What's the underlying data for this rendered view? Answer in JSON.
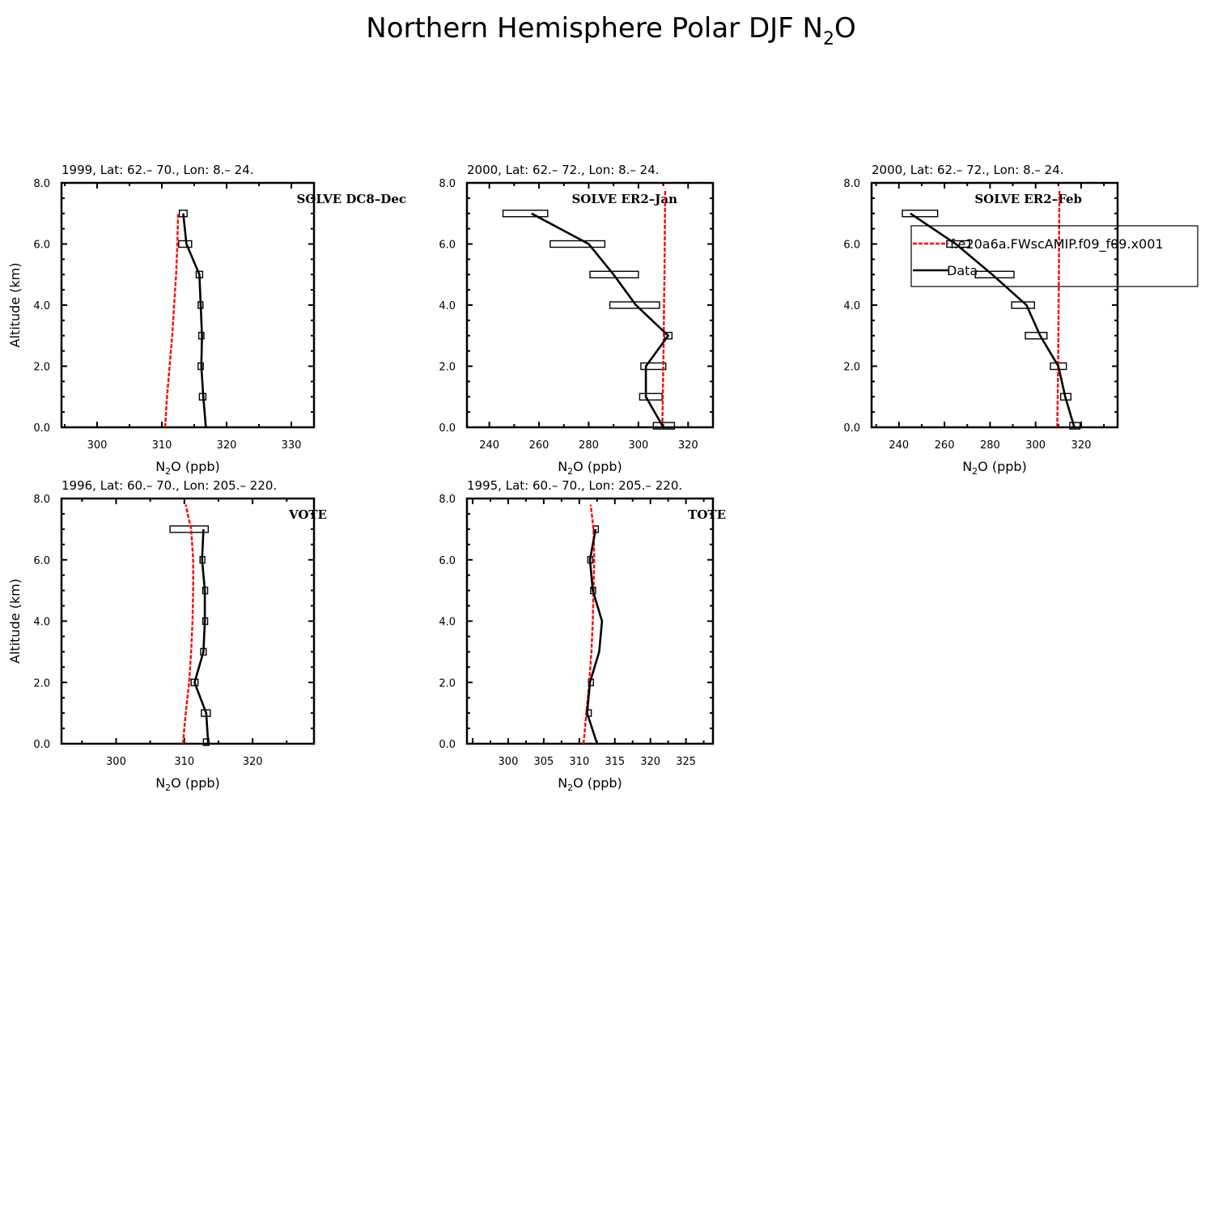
{
  "figure": {
    "title_main": "Northern Hemisphere Polar DJF N",
    "title_sub": "2",
    "title_tail": "O"
  },
  "colors": {
    "model": "#ff0000",
    "data": "#000000",
    "axes": "#000000"
  },
  "legend": {
    "model_label": "f.e20a6a.FWscAMIP.f09_f09.x001",
    "data_label": "Data"
  },
  "chart_data": [
    {
      "type": "line",
      "title": "1999, Lat: 62.– 70., Lon: 8.– 24.",
      "campaign": "SOLVE DC8–Dec",
      "xlabel_main": "N",
      "xlabel_sub": "2",
      "xlabel_tail": "O (ppb)",
      "ylabel": "Altitude (km)",
      "xlim": [
        294.5,
        333.5
      ],
      "ylim": [
        0,
        8
      ],
      "xticks": [
        300,
        310,
        320,
        330
      ],
      "xticklabels": [
        "300",
        "310",
        "320",
        "330"
      ],
      "yticks": [
        0,
        2,
        4,
        6,
        8
      ],
      "yticklabels": [
        "0.0",
        "2.0",
        "4.0",
        "6.0",
        "8.0"
      ],
      "show_legend": false,
      "series": [
        {
          "kind": "model",
          "x": [
            310.5,
            310.8,
            311.2,
            311.6,
            311.9,
            312.2,
            312.4,
            312.5
          ],
          "y": [
            0,
            1,
            2,
            3,
            4,
            5,
            6,
            7
          ]
        },
        {
          "kind": "data",
          "x": [
            316.8,
            316.4,
            316.1,
            316.2,
            316.0,
            315.8,
            313.8,
            313.3
          ],
          "y": [
            0,
            1,
            2,
            3,
            4,
            5,
            6,
            7
          ]
        }
      ],
      "boxes": [
        {
          "x0": 315.8,
          "x1": 316.8,
          "y": 1
        },
        {
          "x0": 315.6,
          "x1": 316.4,
          "y": 2
        },
        {
          "x0": 315.7,
          "x1": 316.5,
          "y": 3
        },
        {
          "x0": 315.6,
          "x1": 316.3,
          "y": 4
        },
        {
          "x0": 315.3,
          "x1": 316.3,
          "y": 5
        },
        {
          "x0": 312.6,
          "x1": 314.6,
          "y": 6
        },
        {
          "x0": 312.7,
          "x1": 313.9,
          "y": 7
        }
      ]
    },
    {
      "type": "line",
      "title": "2000, Lat: 62.– 72., Lon: 8.– 24.",
      "campaign": "SOLVE ER2–Jan",
      "xlabel_main": "N",
      "xlabel_sub": "2",
      "xlabel_tail": "O (ppb)",
      "ylabel": "",
      "xlim": [
        231,
        330
      ],
      "ylim": [
        0,
        8
      ],
      "xticks": [
        240,
        260,
        280,
        300,
        320
      ],
      "xticklabels": [
        "240",
        "260",
        "280",
        "300",
        "320"
      ],
      "yticks": [
        0,
        2,
        4,
        6,
        8
      ],
      "yticklabels": [
        "0.0",
        "2.0",
        "4.0",
        "6.0",
        "8.0"
      ],
      "show_legend": false,
      "series": [
        {
          "kind": "model",
          "x": [
            309.6,
            309.8,
            310.0,
            310.2,
            310.3,
            310.5,
            310.6,
            310.7,
            310.8
          ],
          "y": [
            0,
            1,
            2,
            3,
            4,
            5,
            6,
            7,
            7.8
          ]
        },
        {
          "kind": "data",
          "x": [
            310.0,
            303.0,
            303.0,
            312.0,
            299.0,
            290.0,
            280.0,
            257.0
          ],
          "y": [
            0,
            1,
            2,
            3,
            4,
            5,
            6,
            7
          ]
        }
      ],
      "boxes": [
        {
          "x0": 306.0,
          "x1": 314.5,
          "y": 0.05
        },
        {
          "x0": 300.5,
          "x1": 309.5,
          "y": 1
        },
        {
          "x0": 301.0,
          "x1": 311.0,
          "y": 2
        },
        {
          "x0": 310.5,
          "x1": 313.5,
          "y": 3
        },
        {
          "x0": 288.5,
          "x1": 308.5,
          "y": 4
        },
        {
          "x0": 280.5,
          "x1": 300.0,
          "y": 5
        },
        {
          "x0": 264.5,
          "x1": 286.5,
          "y": 6
        },
        {
          "x0": 245.5,
          "x1": 263.5,
          "y": 7
        }
      ]
    },
    {
      "type": "line",
      "title": "2000, Lat: 62.– 72., Lon: 8.– 24.",
      "campaign": "SOLVE ER2–Feb",
      "xlabel_main": "N",
      "xlabel_sub": "2",
      "xlabel_tail": "O (ppb)",
      "ylabel": "",
      "xlim": [
        228,
        336
      ],
      "ylim": [
        0,
        8
      ],
      "xticks": [
        240,
        260,
        280,
        300,
        320
      ],
      "xticklabels": [
        "240",
        "260",
        "280",
        "300",
        "320"
      ],
      "yticks": [
        0,
        2,
        4,
        6,
        8
      ],
      "yticklabels": [
        "0.0",
        "2.0",
        "4.0",
        "6.0",
        "8.0"
      ],
      "show_legend": true,
      "series": [
        {
          "kind": "model",
          "x": [
            309.5,
            309.7,
            309.9,
            310.0,
            310.1,
            310.2,
            310.3,
            310.4,
            310.5
          ],
          "y": [
            0,
            1,
            2,
            3,
            4,
            5,
            6,
            7,
            7.8
          ]
        },
        {
          "kind": "data",
          "x": [
            317.0,
            313.0,
            310.0,
            302.0,
            296.0,
            281.0,
            265.0,
            245.0
          ],
          "y": [
            0,
            1,
            2,
            3,
            4,
            5,
            6,
            7
          ]
        }
      ],
      "boxes": [
        {
          "x0": 315.0,
          "x1": 319.5,
          "y": 0.05
        },
        {
          "x0": 311.0,
          "x1": 315.5,
          "y": 1
        },
        {
          "x0": 306.5,
          "x1": 313.5,
          "y": 2
        },
        {
          "x0": 295.5,
          "x1": 305.0,
          "y": 3
        },
        {
          "x0": 289.5,
          "x1": 299.5,
          "y": 4
        },
        {
          "x0": 273.5,
          "x1": 290.5,
          "y": 5
        },
        {
          "x0": 261.0,
          "x1": 271.0,
          "y": 6
        },
        {
          "x0": 241.5,
          "x1": 257.0,
          "y": 7
        }
      ]
    },
    {
      "type": "line",
      "title": "1996, Lat: 60.– 70., Lon: 205.– 220.",
      "campaign": "VOTE",
      "xlabel_main": "N",
      "xlabel_sub": "2",
      "xlabel_tail": "O (ppb)",
      "ylabel": "Altitude (km)",
      "xlim": [
        292,
        329
      ],
      "ylim": [
        0,
        8
      ],
      "xticks": [
        300,
        310,
        320
      ],
      "xticklabels": [
        "300",
        "310",
        "320"
      ],
      "yticks": [
        0,
        2,
        4,
        6,
        8
      ],
      "yticklabels": [
        "0.0",
        "2.0",
        "4.0",
        "6.0",
        "8.0"
      ],
      "show_legend": false,
      "series": [
        {
          "kind": "model",
          "x": [
            309.8,
            310.2,
            310.7,
            311.0,
            311.2,
            311.3,
            311.3,
            311.0,
            310.2
          ],
          "y": [
            0,
            1,
            2,
            3,
            4,
            5,
            6,
            7,
            7.8
          ]
        },
        {
          "kind": "data",
          "x": [
            313.5,
            313.2,
            311.5,
            312.8,
            313.0,
            313.0,
            312.6,
            312.8
          ],
          "y": [
            0,
            1,
            2,
            3,
            4,
            5,
            6,
            7
          ]
        }
      ],
      "boxes": [
        {
          "x0": 312.8,
          "x1": 313.6,
          "y": 0.05
        },
        {
          "x0": 312.5,
          "x1": 313.8,
          "y": 1
        },
        {
          "x0": 311.0,
          "x1": 312.0,
          "y": 2
        },
        {
          "x0": 312.4,
          "x1": 313.2,
          "y": 3
        },
        {
          "x0": 312.7,
          "x1": 313.3,
          "y": 4
        },
        {
          "x0": 312.7,
          "x1": 313.3,
          "y": 5
        },
        {
          "x0": 312.3,
          "x1": 312.9,
          "y": 6
        },
        {
          "x0": 307.9,
          "x1": 313.5,
          "y": 7
        }
      ]
    },
    {
      "type": "line",
      "title": "1995, Lat: 60.– 70., Lon: 205.– 220.",
      "campaign": "TOTE",
      "xlabel_main": "N",
      "xlabel_sub": "2",
      "xlabel_tail": "O (ppb)",
      "ylabel": "",
      "xlim": [
        294.2,
        328.8
      ],
      "ylim": [
        0,
        8
      ],
      "xticks": [
        300,
        305,
        310,
        315,
        320,
        325
      ],
      "xticklabels": [
        "300",
        "305",
        "310",
        "315",
        "320",
        "325"
      ],
      "yticks": [
        0,
        2,
        4,
        6,
        8
      ],
      "yticklabels": [
        "0.0",
        "2.0",
        "4.0",
        "6.0",
        "8.0"
      ],
      "show_legend": false,
      "series": [
        {
          "kind": "model",
          "x": [
            310.6,
            311.0,
            311.4,
            311.7,
            311.9,
            312.0,
            312.1,
            312.0,
            311.6
          ],
          "y": [
            0,
            1,
            2,
            3,
            4,
            5,
            6,
            7,
            7.8
          ]
        },
        {
          "kind": "data",
          "x": [
            312.5,
            311.1,
            311.5,
            312.8,
            313.2,
            311.9,
            311.5,
            312.3
          ],
          "y": [
            0,
            1,
            2,
            3,
            4,
            5,
            6,
            7
          ]
        }
      ],
      "boxes": [
        {
          "x0": 311.0,
          "x1": 311.6,
          "y": 1
        },
        {
          "x0": 311.3,
          "x1": 311.9,
          "y": 2
        },
        {
          "x0": 311.6,
          "x1": 312.2,
          "y": 5
        },
        {
          "x0": 311.2,
          "x1": 311.8,
          "y": 6
        },
        {
          "x0": 312.0,
          "x1": 312.6,
          "y": 7
        }
      ]
    }
  ]
}
